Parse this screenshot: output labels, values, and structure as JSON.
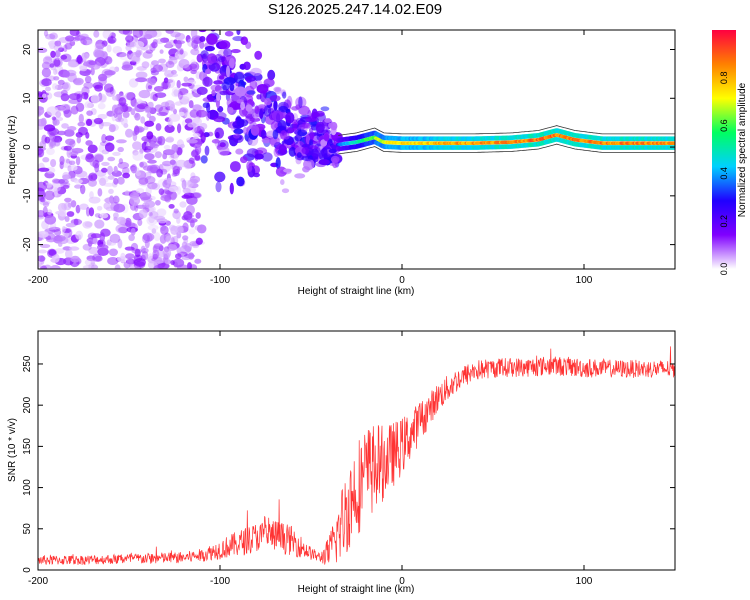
{
  "title": "S126.2025.247.14.02.E09",
  "chart_data": [
    {
      "type": "heatmap",
      "name": "spectrogram",
      "xlabel": "Height of straight line (km)",
      "ylabel": "Frequency (Hz)",
      "xlim": [
        -200,
        150
      ],
      "ylim": [
        -25,
        24
      ],
      "xticks": [
        -200,
        -100,
        0,
        100
      ],
      "xtick_labels": [
        "-200",
        "-100",
        "0",
        "100"
      ],
      "yticks": [
        -20,
        -10,
        0,
        10,
        20
      ],
      "ytick_labels": [
        "-20",
        "-10",
        "0",
        "10",
        "20"
      ],
      "colorbar": {
        "label": "Normalized spectral amplitude",
        "range": [
          0,
          1
        ],
        "ticks": [
          0.0,
          0.2,
          0.4,
          0.6,
          0.8
        ],
        "tick_labels": [
          "0.0",
          "0.2",
          "0.4",
          "0.6",
          "0.8"
        ],
        "colors": [
          "#ffffff",
          "#8000ff",
          "#2000ff",
          "#00d0ff",
          "#00ff60",
          "#ffff00",
          "#ff8000",
          "#ff0040"
        ]
      },
      "carrier_line": {
        "x_range": [
          -35,
          150
        ],
        "frequency_hz": [
          [
            -35,
            0.5
          ],
          [
            -25,
            1.0
          ],
          [
            -15,
            2.0
          ],
          [
            -10,
            1.0
          ],
          [
            0,
            0.8
          ],
          [
            20,
            0.8
          ],
          [
            40,
            0.8
          ],
          [
            60,
            1.0
          ],
          [
            75,
            1.5
          ],
          [
            85,
            2.5
          ],
          [
            95,
            1.5
          ],
          [
            110,
            0.8
          ],
          [
            130,
            0.8
          ],
          [
            150,
            0.8
          ]
        ],
        "amplitude": [
          [
            -35,
            0.35
          ],
          [
            -25,
            0.55
          ],
          [
            -10,
            0.75
          ],
          [
            0,
            0.8
          ],
          [
            20,
            0.85
          ],
          [
            40,
            0.9
          ],
          [
            60,
            0.92
          ],
          [
            80,
            0.95
          ],
          [
            100,
            0.93
          ],
          [
            120,
            0.92
          ],
          [
            150,
            0.9
          ]
        ]
      },
      "noise_region": {
        "x_range": [
          -200,
          -110
        ],
        "frequency_range": [
          -25,
          24
        ],
        "amplitude_range": [
          0.02,
          0.15
        ]
      },
      "transition_region": {
        "x_range": [
          -110,
          -35
        ],
        "frequency_center": [
          [
            -110,
            14
          ],
          [
            -90,
            8
          ],
          [
            -70,
            4
          ],
          [
            -50,
            2
          ],
          [
            -35,
            0.5
          ]
        ],
        "amplitude_range": [
          0.05,
          0.3
        ]
      }
    },
    {
      "type": "line",
      "name": "snr",
      "xlabel": "Height of straight line (km)",
      "ylabel": "SNR (10 * v/v)",
      "xlim": [
        -200,
        150
      ],
      "ylim": [
        0,
        290
      ],
      "xticks": [
        -200,
        -100,
        0,
        100
      ],
      "xtick_labels": [
        "-200",
        "-100",
        "0",
        "100"
      ],
      "yticks": [
        0,
        50,
        100,
        150,
        200,
        250
      ],
      "ytick_labels": [
        "0",
        "50",
        "100",
        "150",
        "200",
        "250"
      ],
      "color": "#ff3333",
      "series": [
        {
          "name": "SNR",
          "x": [
            -200,
            -180,
            -160,
            -140,
            -120,
            -110,
            -100,
            -90,
            -80,
            -70,
            -60,
            -50,
            -45,
            -40,
            -35,
            -30,
            -25,
            -20,
            -15,
            -10,
            -5,
            0,
            5,
            10,
            15,
            20,
            30,
            40,
            50,
            60,
            70,
            80,
            90,
            100,
            110,
            120,
            130,
            140,
            150
          ],
          "y": [
            12,
            12,
            13,
            14,
            15,
            18,
            25,
            32,
            40,
            42,
            35,
            20,
            15,
            22,
            45,
            75,
            100,
            115,
            125,
            130,
            140,
            150,
            165,
            180,
            195,
            210,
            230,
            242,
            245,
            246,
            246,
            248,
            247,
            245,
            245,
            244,
            244,
            244,
            244
          ],
          "noise": [
            6,
            6,
            6,
            7,
            7,
            8,
            12,
            16,
            18,
            20,
            18,
            8,
            6,
            20,
            40,
            55,
            60,
            60,
            55,
            45,
            40,
            35,
            30,
            25,
            20,
            18,
            15,
            13,
            12,
            12,
            12,
            12,
            12,
            12,
            11,
            11,
            11,
            11,
            11
          ]
        }
      ]
    }
  ]
}
